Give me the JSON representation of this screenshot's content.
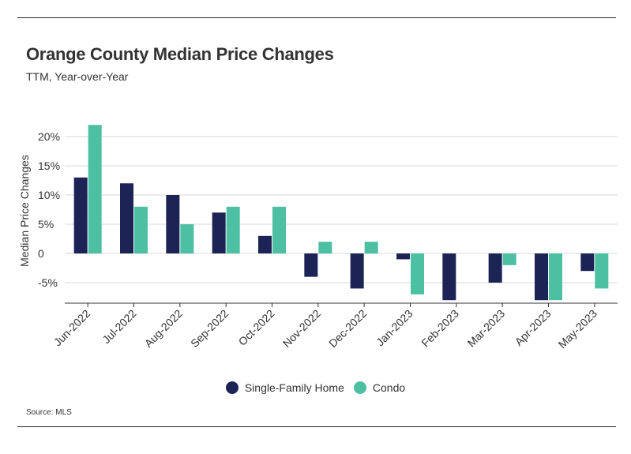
{
  "title": "Orange County Median Price Changes",
  "subtitle": "TTM, Year-over-Year",
  "source": "Source:  MLS",
  "colors": {
    "single_family": "#1c2456",
    "condo": "#4dbfa3",
    "grid": "#d9d9d9",
    "axis": "#333333"
  },
  "chart_data": {
    "type": "bar",
    "ylabel": "Median Price Changes",
    "xlabel": "",
    "ylim": [
      -8,
      22
    ],
    "yticks": [
      20,
      15,
      10,
      5,
      0,
      -5
    ],
    "ytick_labels": [
      "20%",
      "15%",
      "10%",
      "5%",
      "0",
      "-5%"
    ],
    "categories": [
      "Jun-2022",
      "Jul-2022",
      "Aug-2022",
      "Sep-2022",
      "Oct-2022",
      "Nov-2022",
      "Dec-2022",
      "Jan-2023",
      "Feb-2023",
      "Mar-2023",
      "Apr-2023",
      "May-2023"
    ],
    "series": [
      {
        "name": "Single-Family Home",
        "values": [
          13,
          12,
          10,
          7,
          3,
          -4,
          -6,
          -1,
          -8,
          -5,
          -8,
          -3
        ]
      },
      {
        "name": "Condo",
        "values": [
          22,
          8,
          5,
          8,
          8,
          2,
          2,
          -7,
          0,
          -2,
          -8,
          -6
        ]
      }
    ],
    "legend": "bottom-center",
    "grid": true
  }
}
